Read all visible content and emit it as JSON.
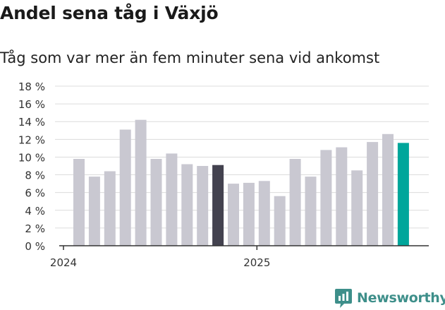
{
  "title": "Andel sena tåg i Växjö",
  "subtitle": "Tåg som var mer än fem minuter sena vid ankomst",
  "brand": {
    "name": "Newsworthy",
    "color": "#3e8f8a"
  },
  "chart_data": {
    "type": "bar",
    "y_ticks": [
      "0 %",
      "2 %",
      "4 %",
      "6 %",
      "8 %",
      "10 %",
      "12 %",
      "14 %",
      "16 %",
      "18 %"
    ],
    "ylim": [
      0,
      18
    ],
    "x_tick_labels": [
      {
        "label": "2024",
        "index": 0
      },
      {
        "label": "2025",
        "index": 12
      }
    ],
    "grid": true,
    "values": [
      9.8,
      7.8,
      8.4,
      13.1,
      14.2,
      9.8,
      10.4,
      9.2,
      9.0,
      9.1,
      7.0,
      7.1,
      7.3,
      5.6,
      9.8,
      7.8,
      10.8,
      11.1,
      8.5,
      11.7,
      12.6,
      11.6
    ],
    "highlight": [
      {
        "index": 9,
        "color": "#43424f"
      },
      {
        "index": 21,
        "color": "#00a69b"
      }
    ],
    "colors": {
      "bar": "#c9c8d1",
      "grid": "#dcdcdc",
      "axis": "#333333"
    }
  }
}
